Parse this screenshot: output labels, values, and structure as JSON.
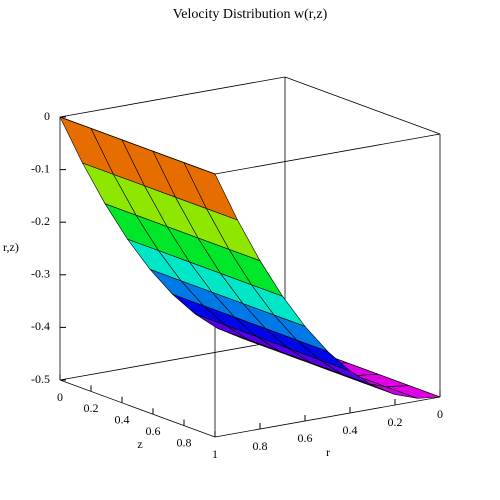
{
  "chart_data": {
    "type": "surface3d",
    "title": "Velocity Distribution w(r,z)",
    "value_axis_label": "r,z)",
    "x_label": "r",
    "y_label": "z",
    "x": [
      0,
      0.1,
      0.2,
      0.3,
      0.4,
      0.5,
      0.6,
      0.7,
      0.8,
      0.9,
      1
    ],
    "y": [
      0,
      0.2,
      0.4,
      0.6,
      0.8,
      1
    ],
    "values": [
      [
        -0.5,
        -0.495,
        -0.48,
        -0.455,
        -0.42,
        -0.375,
        -0.32,
        -0.255,
        -0.18,
        -0.095,
        0
      ],
      [
        -0.5,
        -0.495,
        -0.48,
        -0.455,
        -0.42,
        -0.375,
        -0.32,
        -0.255,
        -0.18,
        -0.095,
        0
      ],
      [
        -0.5,
        -0.495,
        -0.48,
        -0.455,
        -0.42,
        -0.375,
        -0.32,
        -0.255,
        -0.18,
        -0.095,
        0
      ],
      [
        -0.5,
        -0.495,
        -0.48,
        -0.455,
        -0.42,
        -0.375,
        -0.32,
        -0.255,
        -0.18,
        -0.095,
        0
      ],
      [
        -0.5,
        -0.495,
        -0.48,
        -0.455,
        -0.42,
        -0.375,
        -0.32,
        -0.255,
        -0.18,
        -0.095,
        0
      ],
      [
        -0.5,
        -0.495,
        -0.48,
        -0.455,
        -0.42,
        -0.375,
        -0.32,
        -0.255,
        -0.18,
        -0.095,
        0
      ]
    ],
    "xlim": [
      0,
      1
    ],
    "xticks": [
      0.8,
      0.6,
      0.4,
      0.2,
      0
    ],
    "ylim": [
      0,
      1
    ],
    "yticks": [
      0,
      0.2,
      0.4,
      0.6,
      0.8,
      1
    ],
    "vlim": [
      -0.5,
      0
    ],
    "vticks": [
      0,
      -0.1,
      -0.2,
      -0.3,
      -0.4,
      -0.5
    ]
  }
}
